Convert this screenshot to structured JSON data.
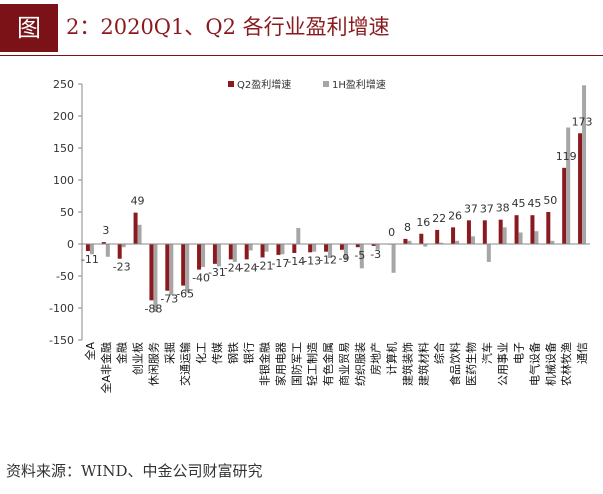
{
  "figure": {
    "badge": "图",
    "title": "2：2020Q1、Q2 各行业盈利增速",
    "source": "资料来源：WIND、中金公司财富研究"
  },
  "colors": {
    "q2": "#8b1a1f",
    "h1": "#a6a6a6",
    "axis": "#888888",
    "text": "#333333"
  },
  "chart_data": {
    "type": "bar",
    "ylim": [
      -150,
      250
    ],
    "yticks": [
      -150,
      -100,
      -50,
      0,
      50,
      100,
      150,
      200,
      250
    ],
    "legend_position": "top-right",
    "grid": false,
    "categories": [
      "全A",
      "全A非金融",
      "金融",
      "创业板",
      "休闲服务",
      "采掘",
      "交通运输",
      "化工",
      "传媒",
      "钢铁",
      "银行",
      "非银金融",
      "家用电器",
      "国防军工",
      "轻工制造",
      "有色金属",
      "商业贸易",
      "纺织服装",
      "房地产",
      "计算机",
      "建筑装饰",
      "建筑材料",
      "综合",
      "食品饮料",
      "医药生物",
      "汽车",
      "公用事业",
      "电子",
      "电气设备",
      "机械设备",
      "农林牧渔",
      "通信"
    ],
    "series": [
      {
        "name": "Q2盈利增速",
        "values": [
          -11,
          3,
          -23,
          49,
          -88,
          -73,
          -65,
          -40,
          -31,
          -24,
          -24,
          -21,
          -17,
          -14,
          -13,
          -12,
          -9,
          -5,
          -3,
          0,
          8,
          16,
          22,
          26,
          37,
          37,
          38,
          45,
          45,
          50,
          119,
          173
        ]
      },
      {
        "name": "1H盈利增速",
        "values": [
          -16,
          -20,
          -5,
          30,
          -106,
          -80,
          -76,
          -36,
          -35,
          -28,
          -10,
          -12,
          -16,
          25,
          -12,
          -22,
          -25,
          -38,
          -9,
          -45,
          5,
          -4,
          2,
          5,
          12,
          -28,
          26,
          18,
          20,
          5,
          182,
          248
        ]
      }
    ],
    "data_labels": [
      "-11",
      "3",
      "-23",
      "49",
      "-88",
      "-73",
      "-65",
      "-40",
      "-31",
      "-24",
      "-24",
      "-21",
      "-17",
      "-14",
      "-13",
      "-12",
      "-9",
      "-5",
      "-3",
      "0",
      "8",
      "16",
      "22",
      "26",
      "37",
      "37",
      "38",
      "45",
      "45",
      "50",
      "119",
      "173"
    ]
  }
}
